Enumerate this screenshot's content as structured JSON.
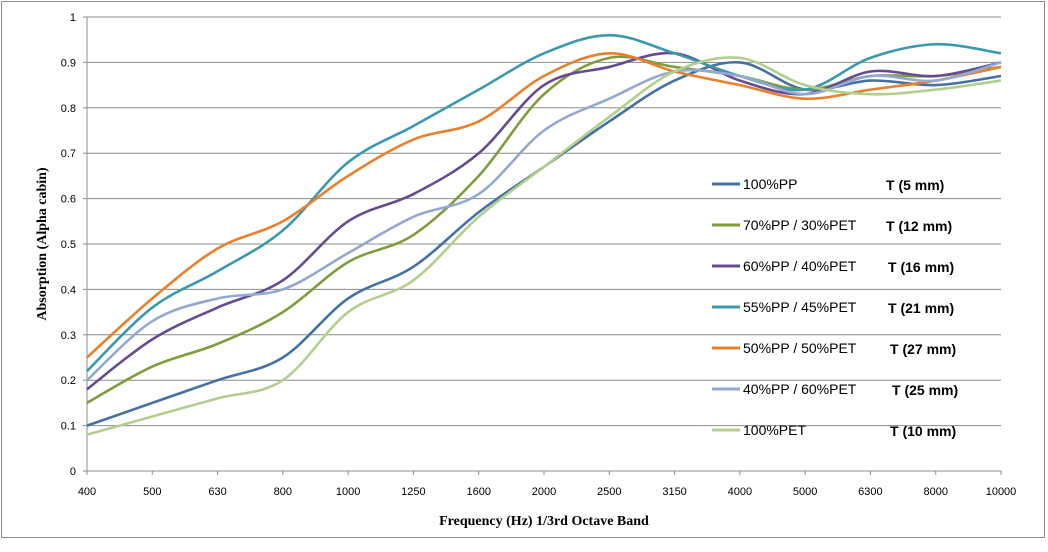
{
  "chart_data": {
    "type": "line",
    "title": "",
    "xlabel": "Frequency (Hz) 1/3rd Octave Band",
    "ylabel": "Absorption (Alpha cabin)",
    "ylim": [
      0,
      1
    ],
    "yticks": [
      "0",
      "0.1",
      "0.2",
      "0.3",
      "0.4",
      "0.5",
      "0.6",
      "0.7",
      "0.8",
      "0.9",
      "1"
    ],
    "grid": "horizontal",
    "legend_position": "center-right",
    "categories": [
      "400",
      "500",
      "630",
      "800",
      "1000",
      "1250",
      "1600",
      "2000",
      "2500",
      "3150",
      "4000",
      "5000",
      "6300",
      "8000",
      "10000"
    ],
    "series": [
      {
        "name": "100%PP",
        "thickness": "T (5 mm)",
        "color": "#4472a4",
        "values": [
          0.1,
          0.15,
          0.2,
          0.25,
          0.38,
          0.45,
          0.57,
          0.67,
          0.77,
          0.86,
          0.9,
          0.84,
          0.86,
          0.85,
          0.87
        ]
      },
      {
        "name": "70%PP / 30%PET",
        "thickness": "T (12 mm)",
        "color": "#7f9d3c",
        "values": [
          0.15,
          0.23,
          0.28,
          0.35,
          0.46,
          0.52,
          0.65,
          0.83,
          0.91,
          0.89,
          0.87,
          0.84,
          0.87,
          0.87,
          0.89
        ]
      },
      {
        "name": "60%PP / 40%PET",
        "thickness": "T (16 mm)",
        "color": "#674b92",
        "values": [
          0.18,
          0.29,
          0.36,
          0.42,
          0.55,
          0.61,
          0.7,
          0.85,
          0.89,
          0.92,
          0.86,
          0.83,
          0.88,
          0.87,
          0.9
        ]
      },
      {
        "name": "55%PP / 45%PET",
        "thickness": "T (21 mm)",
        "color": "#3a99ad",
        "values": [
          0.22,
          0.36,
          0.44,
          0.53,
          0.68,
          0.76,
          0.84,
          0.92,
          0.96,
          0.92,
          0.87,
          0.84,
          0.91,
          0.94,
          0.92
        ]
      },
      {
        "name": "50%PP / 50%PET",
        "thickness": "T (27 mm)",
        "color": "#e8802d",
        "values": [
          0.25,
          0.38,
          0.49,
          0.55,
          0.65,
          0.73,
          0.77,
          0.87,
          0.92,
          0.88,
          0.85,
          0.82,
          0.84,
          0.86,
          0.89
        ]
      },
      {
        "name": "40%PP / 60%PET",
        "thickness": "T (25 mm)",
        "color": "#93a9d1",
        "values": [
          0.2,
          0.33,
          0.38,
          0.4,
          0.48,
          0.56,
          0.61,
          0.75,
          0.82,
          0.88,
          0.87,
          0.83,
          0.87,
          0.86,
          0.9
        ]
      },
      {
        "name": "100%PET",
        "thickness": "T (10 mm)",
        "color": "#b3cf8d",
        "values": [
          0.08,
          0.12,
          0.16,
          0.2,
          0.35,
          0.42,
          0.56,
          0.67,
          0.78,
          0.88,
          0.91,
          0.85,
          0.83,
          0.84,
          0.86
        ]
      }
    ]
  }
}
